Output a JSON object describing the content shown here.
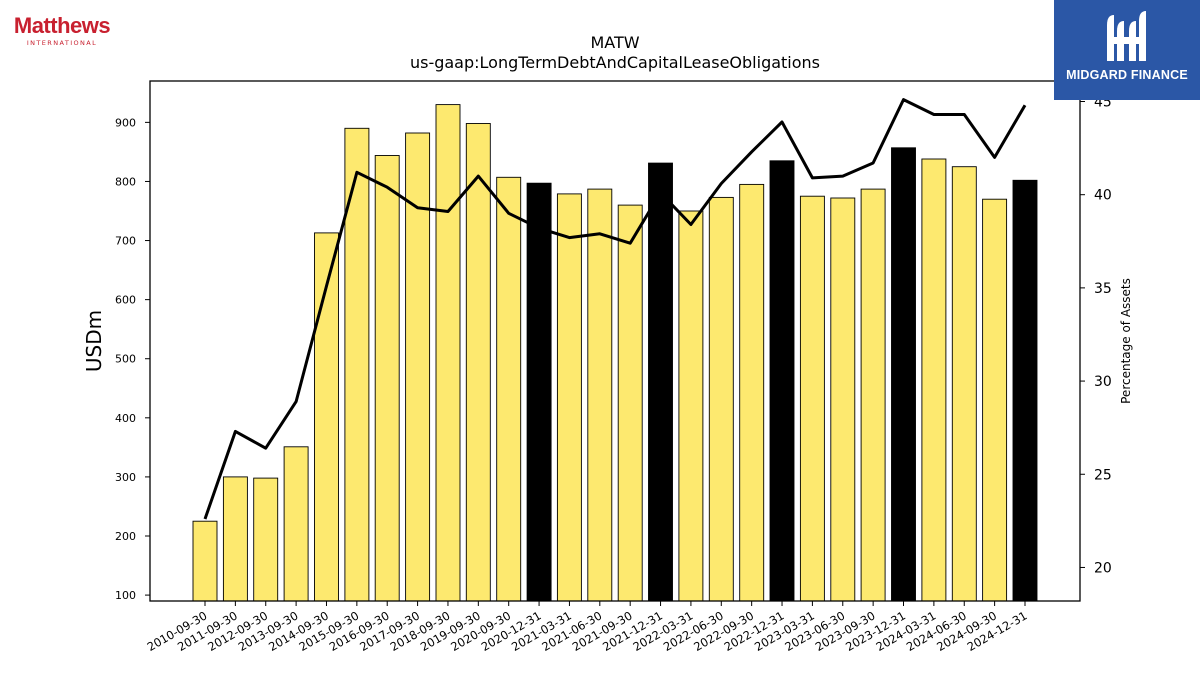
{
  "logos": {
    "company_name": "Matthews",
    "company_sub": "INTERNATIONAL",
    "brand": "MIDGARD FINANCE"
  },
  "colors": {
    "bar_fy": "#fde96f",
    "bar_q4": "#000000",
    "line": "#000000",
    "logo_red": "#c8202f",
    "brand_blue": "#2b57a6"
  },
  "chart_data": {
    "type": "bar",
    "title": "MATW",
    "subtitle": "us-gaap:LongTermDebtAndCapitalLeaseObligations",
    "ylabel": "USDm",
    "y2label": "Percentage of Assets",
    "ylim": [
      90,
      970
    ],
    "y2lim": [
      18.2,
      46.1
    ],
    "yticks": [
      100,
      200,
      300,
      400,
      500,
      600,
      700,
      800,
      900
    ],
    "y2ticks": [
      20,
      25,
      30,
      35,
      40,
      45
    ],
    "grid": false,
    "categories": [
      "2010-09-30",
      "2011-09-30",
      "2012-09-30",
      "2013-09-30",
      "2014-09-30",
      "2015-09-30",
      "2016-09-30",
      "2017-09-30",
      "2018-09-30",
      "2019-09-30",
      "2020-09-30",
      "2020-12-31",
      "2021-03-31",
      "2021-06-30",
      "2021-09-30",
      "2021-12-31",
      "2022-03-31",
      "2022-06-30",
      "2022-09-30",
      "2022-12-31",
      "2023-03-31",
      "2023-06-30",
      "2023-09-30",
      "2023-12-31",
      "2024-03-31",
      "2024-06-30",
      "2024-09-30",
      "2024-12-31"
    ],
    "series": [
      {
        "type": "bar",
        "axis": "left",
        "values": [
          225,
          300,
          298,
          351,
          713,
          890,
          844,
          882,
          930,
          898,
          807,
          797,
          779,
          787,
          760,
          831,
          750,
          773,
          795,
          835,
          775,
          772,
          787,
          857,
          838,
          825,
          770,
          802
        ],
        "highlight": [
          false,
          false,
          false,
          false,
          false,
          false,
          false,
          false,
          false,
          false,
          false,
          true,
          false,
          false,
          false,
          true,
          false,
          false,
          false,
          true,
          false,
          false,
          false,
          true,
          false,
          false,
          false,
          true
        ]
      },
      {
        "type": "line",
        "axis": "right",
        "values": [
          22.6,
          27.3,
          26.4,
          28.9,
          35.1,
          41.2,
          40.4,
          39.3,
          39.1,
          41.0,
          39.0,
          38.2,
          37.7,
          37.9,
          37.4,
          40.1,
          38.4,
          40.6,
          42.3,
          43.9,
          40.9,
          41.0,
          41.7,
          45.1,
          44.3,
          44.3,
          42.0,
          44.8
        ]
      }
    ]
  }
}
